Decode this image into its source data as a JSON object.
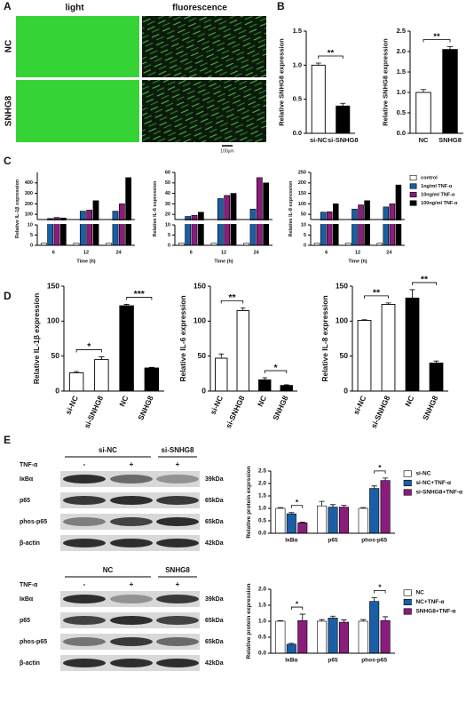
{
  "panel_labels": [
    "A",
    "B",
    "C",
    "D",
    "E"
  ],
  "panel_a": {
    "columns": [
      "light",
      "fluorescence"
    ],
    "rows": [
      "NC",
      "SNHG8"
    ],
    "scale_bar": "100μm"
  },
  "western_blots": [
    {
      "groups": [
        "si-NC",
        "si-SNHG8"
      ],
      "treatment": "TNF-α",
      "lanes": [
        "-",
        "+",
        "+"
      ],
      "proteins": [
        "IκBα",
        "p65",
        "phos-p65",
        "β-actin"
      ],
      "sizes": [
        "39kDa",
        "65kDa",
        "65kDa",
        "42kDa"
      ]
    },
    {
      "groups": [
        "NC",
        "SNHG8"
      ],
      "treatment": "TNF-α",
      "lanes": [
        "-",
        "+",
        "+"
      ],
      "proteins": [
        "IκBα",
        "p65",
        "phos-p65",
        "β-actin"
      ],
      "sizes": [
        "39kDa",
        "65kDa",
        "65kDa",
        "42kDa"
      ]
    }
  ],
  "chart_data": [
    {
      "type": "bar",
      "ylabel": "Relative SNHG8 expression",
      "categories": [
        "si-NC",
        "si-SNHG8"
      ],
      "values": [
        1.0,
        0.4
      ],
      "errors": [
        0.03,
        0.04
      ],
      "colors": [
        "#ffffff",
        "#000000"
      ],
      "ylim": [
        0,
        1.5
      ],
      "yticks": [
        {
          "value": 0,
          "label": "0.0"
        },
        0.5,
        {
          "value": 1,
          "label": "1.0"
        },
        1.5
      ],
      "annotations": [
        "**"
      ]
    },
    {
      "type": "bar",
      "ylabel": "Relative SNHG8 expression",
      "categories": [
        "NC",
        "SNHG8"
      ],
      "values": [
        1.0,
        2.05
      ],
      "errors": [
        0.07,
        0.07
      ],
      "colors": [
        "#ffffff",
        "#000000"
      ],
      "ylim": [
        0,
        2.5
      ],
      "yticks": [
        {
          "value": 0,
          "label": "0.0"
        },
        0.5,
        {
          "value": 1,
          "label": "1.0"
        },
        1.5,
        {
          "value": 2,
          "label": "2.0"
        },
        2.5
      ],
      "annotations": [
        "**"
      ]
    },
    {
      "type": "grouped",
      "ylabel": "Relative IL-1β expression",
      "xlabel": "Time (h)",
      "categories": [
        "6",
        "12",
        "24"
      ],
      "series": [
        {
          "color": "#ffffff",
          "values": [
            1,
            1,
            1
          ]
        },
        {
          "color": "#1a5fa6",
          "values": [
            60,
            130,
            130
          ]
        },
        {
          "color": "#8a1c7c",
          "values": [
            70,
            140,
            200
          ]
        },
        {
          "color": "#000000",
          "values": [
            65,
            230,
            450
          ]
        }
      ],
      "ylim": [
        0,
        500
      ],
      "ybreak": [
        10,
        50
      ],
      "yticks": [
        0,
        5,
        10,
        100,
        200,
        300,
        400
      ]
    },
    {
      "type": "grouped",
      "ylabel": "Relative IL-6 expression",
      "xlabel": "Time (h)",
      "categories": [
        "6",
        "12",
        "24"
      ],
      "series": [
        {
          "color": "#ffffff",
          "values": [
            1,
            1,
            1
          ]
        },
        {
          "color": "#1a5fa6",
          "values": [
            18,
            35,
            25
          ]
        },
        {
          "color": "#8a1c7c",
          "values": [
            19,
            38,
            55
          ]
        },
        {
          "color": "#000000",
          "values": [
            22,
            40,
            50
          ]
        }
      ],
      "ylim": [
        0,
        60
      ],
      "ybreak": [
        10,
        15
      ],
      "yticks": [
        0,
        5,
        10,
        20,
        30,
        40,
        50,
        60
      ]
    },
    {
      "type": "grouped",
      "ylabel": "Relative IL-8 expression",
      "xlabel": "Time (h)",
      "categories": [
        "6",
        "12",
        "24"
      ],
      "series": [
        {
          "name": "control",
          "color": "#ffffff",
          "values": [
            1,
            1,
            1
          ]
        },
        {
          "name": "1ng/ml  TNF-α",
          "color": "#1a5fa6",
          "values": [
            60,
            75,
            85
          ]
        },
        {
          "name": "10ng/ml  TNF-α",
          "color": "#8a1c7c",
          "values": [
            62,
            95,
            100
          ]
        },
        {
          "name": "100ng/ml TNF-α",
          "color": "#000000",
          "values": [
            100,
            115,
            190
          ]
        }
      ],
      "ylim": [
        0,
        250
      ],
      "ybreak": [
        10,
        25
      ],
      "yticks": [
        0,
        5,
        10,
        50,
        100,
        150,
        200,
        250
      ],
      "legend": "right"
    },
    {
      "type": "bar",
      "ylabel": "Relative IL-1β expression",
      "categories": [
        "si-NC",
        "si-SNHG8",
        "NC",
        "SNHG8"
      ],
      "values": [
        26,
        45,
        122,
        33
      ],
      "errors": [
        2,
        4,
        2,
        1
      ],
      "colors": [
        "#ffffff",
        "#ffffff",
        "#000000",
        "#000000"
      ],
      "ylim": [
        0,
        150
      ],
      "yticks": [
        0,
        50,
        100,
        150
      ],
      "annotations": [
        "*",
        "***"
      ]
    },
    {
      "type": "bar",
      "ylabel": "Relative IL-6 expression",
      "categories": [
        "si-NC",
        "si-SNHG8",
        "NC",
        "SNHG8"
      ],
      "values": [
        47,
        115,
        16,
        8
      ],
      "errors": [
        6,
        4,
        3,
        1
      ],
      "colors": [
        "#ffffff",
        "#ffffff",
        "#000000",
        "#000000"
      ],
      "ylim": [
        0,
        150
      ],
      "yticks": [
        0,
        50,
        100,
        150
      ],
      "annotations": [
        "**",
        "*"
      ]
    },
    {
      "type": "bar",
      "ylabel": "Relative IL-8 expression",
      "categories": [
        "si-NC",
        "si-SNHG8",
        "NC",
        "SNHG8"
      ],
      "values": [
        101,
        124,
        133,
        40
      ],
      "errors": [
        1,
        2,
        12,
        3
      ],
      "colors": [
        "#ffffff",
        "#ffffff",
        "#000000",
        "#000000"
      ],
      "ylim": [
        0,
        150
      ],
      "yticks": [
        0,
        50,
        100,
        150
      ],
      "annotations": [
        "**",
        "**"
      ]
    },
    {
      "type": "grouped",
      "ylabel": "Relative protein exprssion",
      "categories": [
        "IκBα",
        "p65",
        "phos-p65"
      ],
      "series": [
        {
          "name": "si-NC",
          "color": "#ffffff",
          "values": [
            1.0,
            1.1,
            1.0
          ],
          "errors": [
            0.03,
            0.18,
            0.03
          ]
        },
        {
          "name": "si-NC+TNF-α",
          "color": "#1a5fa6",
          "values": [
            0.78,
            1.05,
            1.8
          ],
          "errors": [
            0.05,
            0.1,
            0.1
          ]
        },
        {
          "name": "si-SNHG8+TNF-α",
          "color": "#8a1c7c",
          "values": [
            0.42,
            1.05,
            2.12
          ],
          "errors": [
            0.03,
            0.07,
            0.1
          ]
        }
      ],
      "ylim": [
        0,
        2.5
      ],
      "yticks": [
        {
          "value": 0,
          "label": "0.0"
        },
        0.5,
        {
          "value": 1,
          "label": "1.0"
        },
        1.5,
        {
          "value": 2,
          "label": "2.0"
        },
        2.5
      ],
      "annotations": [
        "*",
        null,
        "*"
      ],
      "legend": "right"
    },
    {
      "type": "grouped",
      "ylabel": "Relative protein expression",
      "categories": [
        "IκBα",
        "p65",
        "phos-p65"
      ],
      "series": [
        {
          "name": "NC",
          "color": "#ffffff",
          "values": [
            1.0,
            1.0,
            1.0
          ],
          "errors": [
            0.02,
            0.05,
            0.05
          ]
        },
        {
          "name": "NC+TNF-α",
          "color": "#1a5fa6",
          "values": [
            0.28,
            1.1,
            1.62
          ],
          "errors": [
            0.03,
            0.06,
            0.12
          ]
        },
        {
          "name": "SNHG8+TNF-α",
          "color": "#8a1c7c",
          "values": [
            1.02,
            0.97,
            1.02
          ],
          "errors": [
            0.2,
            0.07,
            0.12
          ]
        }
      ],
      "ylim": [
        0,
        2
      ],
      "yticks": [
        {
          "value": 0,
          "label": "0.0"
        },
        0.5,
        {
          "value": 1,
          "label": "1.0"
        },
        1.5,
        {
          "value": 2,
          "label": "2.0"
        }
      ],
      "annotations": [
        "*",
        null,
        "*"
      ],
      "legend": "right"
    }
  ]
}
